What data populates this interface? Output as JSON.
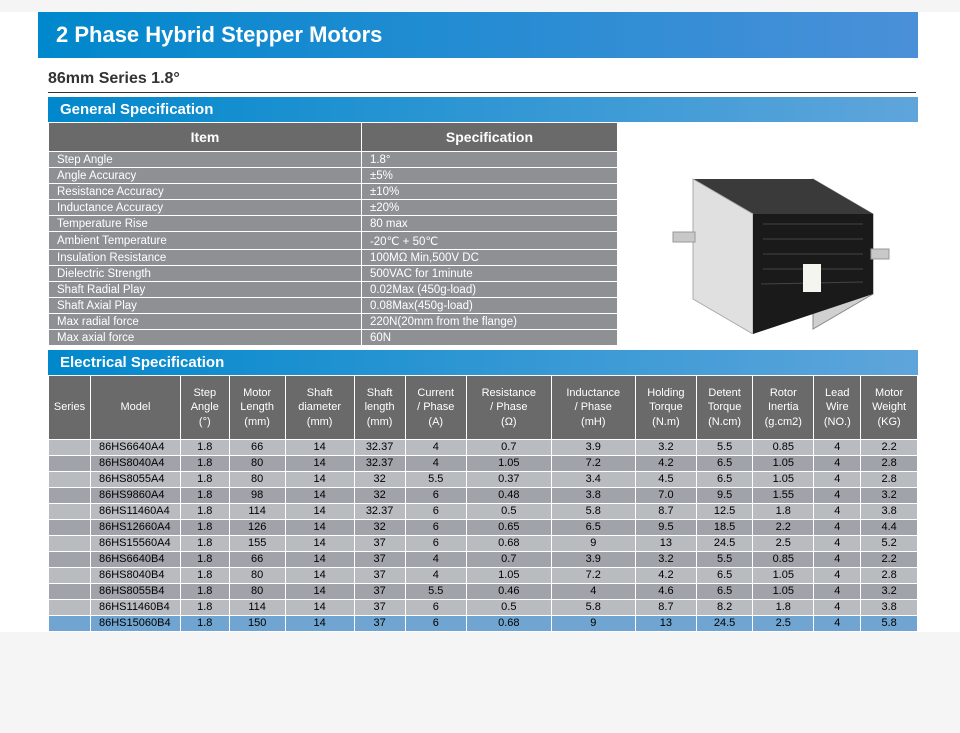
{
  "mainTitle": "2 Phase Hybrid Stepper Motors",
  "subtitle": "86mm Series 1.8°",
  "genSpecTitle": "General Specification",
  "genSpecHeaders": {
    "item": "Item",
    "spec": "Specification"
  },
  "genSpecRows": [
    {
      "item": "Step Angle",
      "spec": "1.8°"
    },
    {
      "item": "Angle Accuracy",
      "spec": "±5%"
    },
    {
      "item": "Resistance Accuracy",
      "spec": "±10%"
    },
    {
      "item": "Inductance Accuracy",
      "spec": "±20%"
    },
    {
      "item": "Temperature Rise",
      "spec": "80 max"
    },
    {
      "item": "Ambient Temperature",
      "spec": " -20℃ + 50℃"
    },
    {
      "item": "Insulation Resistance",
      "spec": "100MΩ Min,500V DC"
    },
    {
      "item": "Dielectric Strength",
      "spec": "500VAC for 1minute"
    },
    {
      "item": "Shaft Radial Play",
      "spec": "0.02Max (450g-load)"
    },
    {
      "item": "Shaft Axial Play",
      "spec": "0.08Max(450g-load)"
    },
    {
      "item": "Max radial force",
      "spec": "220N(20mm from the flange)"
    },
    {
      "item": "Max axial force",
      "spec": "60N"
    }
  ],
  "elecSpecTitle": "Electrical Specification",
  "elecHeaders": [
    "Series",
    "Model",
    "Step\nAngle\n(°)",
    "Motor\nLength\n(mm)",
    "Shaft\ndiameter\n(mm)",
    "Shaft\nlength\n(mm)",
    "Current\n/ Phase\n(A)",
    "Resistance\n/ Phase\n(Ω)",
    "Inductance\n/ Phase\n(mH)",
    "Holding\nTorque\n(N.m)",
    "Detent\nTorque\n(N.cm)",
    "Rotor\nInertia\n(g.cm2)",
    "Lead\nWire\n(NO.)",
    "Motor\nWeight\n(KG)"
  ],
  "elecRows": [
    {
      "model": "86HS6640A4",
      "cells": [
        "1.8",
        "66",
        "14",
        "32.37",
        "4",
        "0.7",
        "3.9",
        "3.2",
        "5.5",
        "0.85",
        "4",
        "2.2"
      ],
      "cls": "row-a"
    },
    {
      "model": "86HS8040A4",
      "cells": [
        "1.8",
        "80",
        "14",
        "32.37",
        "4",
        "1.05",
        "7.2",
        "4.2",
        "6.5",
        "1.05",
        "4",
        "2.8"
      ],
      "cls": "row-b"
    },
    {
      "model": "86HS8055A4",
      "cells": [
        "1.8",
        "80",
        "14",
        "32",
        "5.5",
        "0.37",
        "3.4",
        "4.5",
        "6.5",
        "1.05",
        "4",
        "2.8"
      ],
      "cls": "row-a"
    },
    {
      "model": "86HS9860A4",
      "cells": [
        "1.8",
        "98",
        "14",
        "32",
        "6",
        "0.48",
        "3.8",
        "7.0",
        "9.5",
        "1.55",
        "4",
        "3.2"
      ],
      "cls": "row-b"
    },
    {
      "model": "86HS11460A4",
      "cells": [
        "1.8",
        "114",
        "14",
        "32.37",
        "6",
        "0.5",
        "5.8",
        "8.7",
        "12.5",
        "1.8",
        "4",
        "3.8"
      ],
      "cls": "row-a"
    },
    {
      "model": "86HS12660A4",
      "cells": [
        "1.8",
        "126",
        "14",
        "32",
        "6",
        "0.65",
        "6.5",
        "9.5",
        "18.5",
        "2.2",
        "4",
        "4.4"
      ],
      "cls": "row-b"
    },
    {
      "model": "86HS15560A4",
      "cells": [
        "1.8",
        "155",
        "14",
        "37",
        "6",
        "0.68",
        "9",
        "13",
        "24.5",
        "2.5",
        "4",
        "5.2"
      ],
      "cls": "row-a"
    },
    {
      "model": "86HS6640B4",
      "cells": [
        "1.8",
        "66",
        "14",
        "37",
        "4",
        "0.7",
        "3.9",
        "3.2",
        "5.5",
        "0.85",
        "4",
        "2.2"
      ],
      "cls": "row-b"
    },
    {
      "model": "86HS8040B4",
      "cells": [
        "1.8",
        "80",
        "14",
        "37",
        "4",
        "1.05",
        "7.2",
        "4.2",
        "6.5",
        "1.05",
        "4",
        "2.8"
      ],
      "cls": "row-a"
    },
    {
      "model": "86HS8055B4",
      "cells": [
        "1.8",
        "80",
        "14",
        "37",
        "5.5",
        "0.46",
        "4",
        "4.6",
        "6.5",
        "1.05",
        "4",
        "3.2"
      ],
      "cls": "row-b"
    },
    {
      "model": "86HS11460B4",
      "cells": [
        "1.8",
        "114",
        "14",
        "37",
        "6",
        "0.5",
        "5.8",
        "8.7",
        "8.2",
        "1.8",
        "4",
        "3.8"
      ],
      "cls": "row-a"
    },
    {
      "model": "86HS15060B4",
      "cells": [
        "1.8",
        "150",
        "14",
        "37",
        "6",
        "0.68",
        "9",
        "13",
        "24.5",
        "2.5",
        "4",
        "5.8"
      ],
      "cls": "row-highlight"
    }
  ],
  "colors": {
    "titleGradStart": "#0088cc",
    "titleGradEnd": "#4a90d9",
    "headerBg": "#6a6a6a",
    "specRowBg": "#8e9094",
    "rowA": "#b8bbc0",
    "rowB": "#a0a4aa",
    "highlight": "#6fa5d0"
  }
}
